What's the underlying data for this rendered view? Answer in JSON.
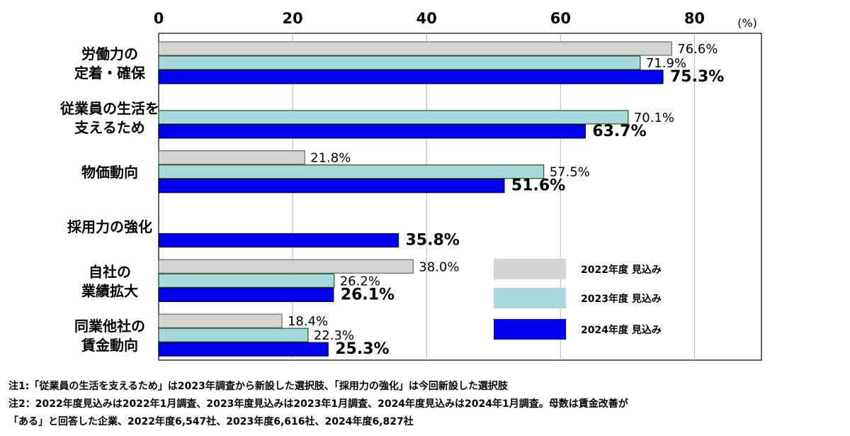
{
  "chart_data": {
    "type": "bar",
    "orientation": "horizontal",
    "unit": "(%)",
    "xlim": [
      0,
      90
    ],
    "xticks": [
      0,
      20,
      40,
      60,
      80
    ],
    "grid": true,
    "legend_position": "bottom-right",
    "categories": [
      [
        "労働力の",
        "定着・確保"
      ],
      [
        "従業員の生活を",
        "支えるため"
      ],
      [
        "物価動向"
      ],
      [
        "採用力の強化"
      ],
      [
        "自社の",
        "業績拡大"
      ],
      [
        "同業他社の",
        "賃金動向"
      ]
    ],
    "series": [
      {
        "name": "2022年度  見込み",
        "color": "#d4d4d4",
        "stroke": "#666666",
        "values": [
          76.6,
          null,
          21.8,
          null,
          38.0,
          18.4
        ],
        "labels": [
          "76.6%",
          "",
          "21.8%",
          "",
          "38.0%",
          "18.4%"
        ]
      },
      {
        "name": "2023年度  見込み",
        "color": "#a8d8dc",
        "stroke": "#1a5a1a",
        "values": [
          71.9,
          70.1,
          57.5,
          null,
          26.2,
          22.3
        ],
        "labels": [
          "71.9%",
          "70.1%",
          "57.5%",
          "",
          "26.2%",
          "22.3%"
        ]
      },
      {
        "name": "2024年度  見込み",
        "color": "#0000ee",
        "stroke": "#000033",
        "values": [
          75.3,
          63.7,
          51.6,
          35.8,
          26.1,
          25.3
        ],
        "labels": [
          "75.3%",
          "63.7%",
          "51.6%",
          "35.8%",
          "26.1%",
          "25.3%"
        ]
      }
    ]
  },
  "notes": [
    "注1:「従業員の生活を支えるため」は2023年調査から新設した選択肢、「採用力の強化」は今回新設した選択肢",
    "注2：2022年度見込みは2022年1月調査、2023年度見込みは2023年1月調査、2024年度見込みは2024年1月調査。母数は賃金改善が",
    "「ある」と回答した企業、2022年度6,547社、2023年度6,616社、2024年度6,827社"
  ]
}
